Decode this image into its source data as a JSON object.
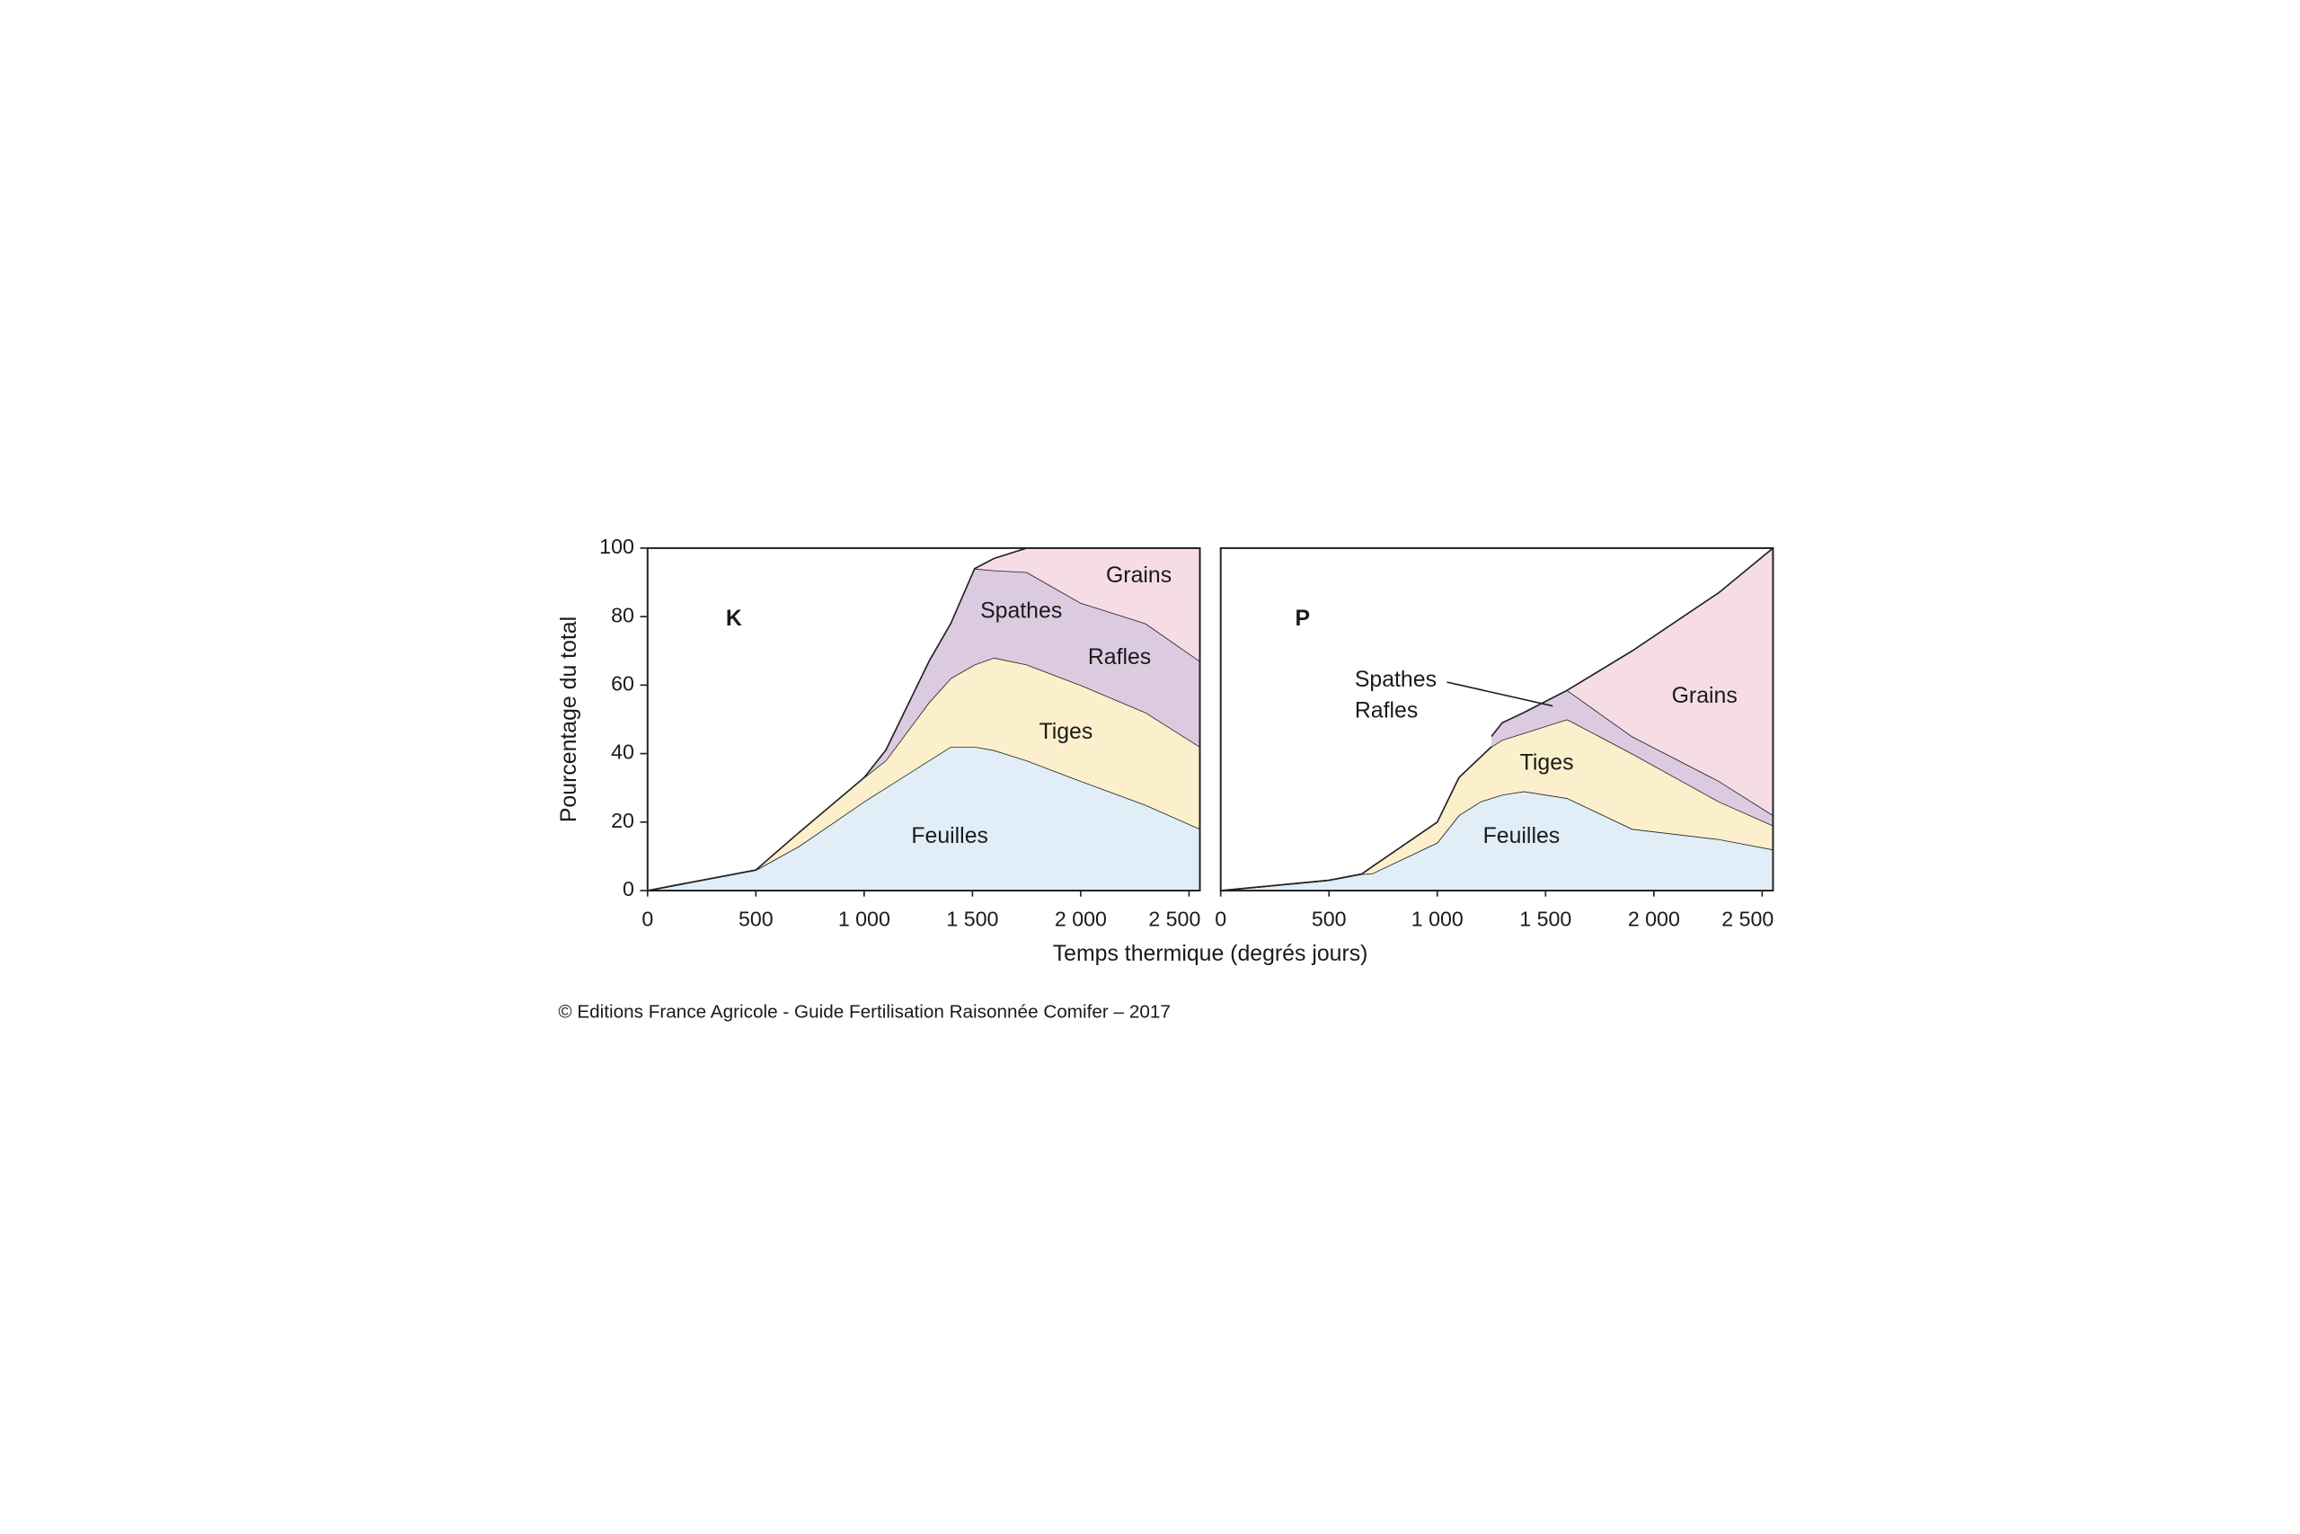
{
  "chart_data": [
    {
      "type": "area",
      "stacked": true,
      "title": "K",
      "ylabel": "Pourcentage du total",
      "xlabel": "Temps thermique (degrés jours)",
      "x": [
        0,
        500,
        700,
        1000,
        1100,
        1300,
        1400,
        1510,
        1600,
        1750,
        2000,
        2300,
        2550
      ],
      "series": [
        {
          "name": "Feuilles",
          "color": "#e1eef8",
          "values": [
            0,
            6,
            13,
            26,
            30,
            38,
            42,
            42,
            41,
            38,
            32,
            25,
            18
          ]
        },
        {
          "name": "Tiges",
          "color": "#fbf0cb",
          "values": [
            0,
            0,
            4,
            7,
            8,
            17,
            20,
            24,
            27,
            28,
            28,
            27,
            24
          ]
        },
        {
          "name": "Spathes",
          "color": "#dccbe0",
          "values": [
            null,
            null,
            null,
            0,
            3,
            12,
            16,
            28,
            25.5,
            27,
            24,
            26,
            25
          ]
        },
        {
          "name": "Grains",
          "color": "#f6dde5",
          "values": [
            null,
            null,
            null,
            null,
            null,
            null,
            null,
            0,
            3.5,
            7,
            16,
            22,
            33
          ]
        }
      ],
      "annotations": [
        "Rafles"
      ],
      "xlim": [
        0,
        2550
      ],
      "xticks": [
        0,
        500,
        {
          "value": 1000,
          "label": "1 000"
        },
        {
          "value": 1500,
          "label": "1 500"
        },
        {
          "value": 2000,
          "label": "2 000"
        },
        {
          "value": 2500,
          "label": "2 500"
        }
      ],
      "ylim": [
        0,
        100
      ],
      "yticks": [
        0,
        20,
        40,
        60,
        80,
        100
      ]
    },
    {
      "type": "area",
      "stacked": true,
      "title": "P",
      "x": [
        0,
        500,
        650,
        700,
        1000,
        1100,
        1200,
        1250,
        1300,
        1400,
        1600,
        1900,
        2300,
        2550
      ],
      "series": [
        {
          "name": "Feuilles",
          "color": "#e1eef8",
          "values": [
            0,
            3,
            4.8,
            5,
            14,
            22,
            26,
            27,
            28,
            29,
            27,
            18,
            15,
            12
          ]
        },
        {
          "name": "Tiges",
          "color": "#fbf0cb",
          "values": [
            0,
            0,
            0,
            2,
            6,
            11,
            13,
            15,
            16,
            17,
            23,
            22,
            11,
            7
          ]
        },
        {
          "name": "Spathes",
          "color": "#dccbe0",
          "values": [
            null,
            null,
            null,
            null,
            null,
            null,
            null,
            3,
            5,
            6,
            8.5,
            5,
            6,
            3
          ]
        },
        {
          "name": "Grains",
          "color": "#f6dde5",
          "values": [
            null,
            null,
            null,
            null,
            null,
            null,
            null,
            null,
            null,
            null,
            0,
            25,
            55,
            78
          ]
        }
      ],
      "annotations": [
        "Rafles"
      ],
      "xlim": [
        0,
        2550
      ],
      "xticks": [
        0,
        500,
        {
          "value": 1000,
          "label": "1 000"
        },
        {
          "value": 1500,
          "label": "1 500"
        },
        {
          "value": 2000,
          "label": "2 000"
        },
        {
          "value": 2500,
          "label": "2 500"
        }
      ],
      "ylim": [
        0,
        100
      ]
    }
  ],
  "source": "© Editions France Agricole - Guide Fertilisation Raisonnée Comifer – 2017"
}
